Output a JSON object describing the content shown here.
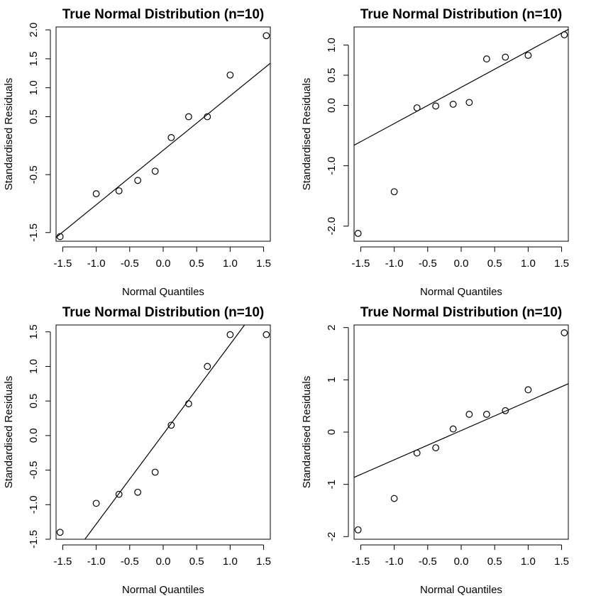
{
  "chart_data": [
    {
      "type": "scatter",
      "title": "True Normal Distribution (n=10)",
      "xlabel": "Normal Quantiles",
      "ylabel": "Standardised Residuals",
      "xlim": [
        -1.6,
        1.6
      ],
      "ylim": [
        -1.65,
        2.05
      ],
      "xticks": [
        -1.5,
        -1.0,
        -0.5,
        0.0,
        0.5,
        1.0,
        1.5
      ],
      "xtick_labels": [
        "-1.5",
        "-1.0",
        "-0.5",
        "0.0",
        "0.5",
        "1.0",
        "1.5"
      ],
      "yticks": [
        -1.5,
        -0.5,
        0.5,
        1.0,
        1.5,
        2.0
      ],
      "ytick_labels": [
        "-1.5",
        "-0.5",
        "0.5",
        "1.0",
        "1.5",
        "2.0"
      ],
      "x": [
        -1.54,
        -1.0,
        -0.66,
        -0.38,
        -0.12,
        0.12,
        0.38,
        0.66,
        1.0,
        1.54
      ],
      "y": [
        -1.57,
        -0.83,
        -0.78,
        -0.6,
        -0.44,
        0.14,
        0.5,
        0.5,
        1.22,
        1.9
      ],
      "reference_line": {
        "intercept": -0.08,
        "slope": 0.94
      }
    },
    {
      "type": "scatter",
      "title": "True Normal Distribution (n=10)",
      "xlabel": "Normal Quantiles",
      "ylabel": "Standardised Residuals",
      "xlim": [
        -1.6,
        1.6
      ],
      "ylim": [
        -2.25,
        1.3
      ],
      "xticks": [
        -1.5,
        -1.0,
        -0.5,
        0.0,
        0.5,
        1.0,
        1.5
      ],
      "xtick_labels": [
        "-1.5",
        "-1.0",
        "-0.5",
        "0.0",
        "0.5",
        "1.0",
        "1.5"
      ],
      "yticks": [
        -2.0,
        -1.0,
        0.0,
        0.5,
        1.0
      ],
      "ytick_labels": [
        "-2.0",
        "-1.0",
        "0.0",
        "0.5",
        "1.0"
      ],
      "x": [
        -1.54,
        -1.0,
        -0.66,
        -0.38,
        -0.12,
        0.12,
        0.38,
        0.66,
        1.0,
        1.54
      ],
      "y": [
        -2.12,
        -1.43,
        -0.04,
        -0.01,
        0.02,
        0.05,
        0.77,
        0.8,
        0.83,
        1.17
      ],
      "reference_line": {
        "intercept": 0.3,
        "slope": 0.6
      }
    },
    {
      "type": "scatter",
      "title": "True Normal Distribution (n=10)",
      "xlabel": "Normal Quantiles",
      "ylabel": "Standardised Residuals",
      "xlim": [
        -1.6,
        1.6
      ],
      "ylim": [
        -1.5,
        1.6
      ],
      "xticks": [
        -1.5,
        -1.0,
        -0.5,
        0.0,
        0.5,
        1.0,
        1.5
      ],
      "xtick_labels": [
        "-1.5",
        "-1.0",
        "-0.5",
        "0.0",
        "0.5",
        "1.0",
        "1.5"
      ],
      "yticks": [
        -1.5,
        -1.0,
        -0.5,
        0.0,
        0.5,
        1.0,
        1.5
      ],
      "ytick_labels": [
        "-1.5",
        "-1.0",
        "-0.5",
        "0.0",
        "0.5",
        "1.0",
        "1.5"
      ],
      "x": [
        -1.54,
        -1.0,
        -0.66,
        -0.38,
        -0.12,
        0.12,
        0.38,
        0.66,
        1.0,
        1.54
      ],
      "y": [
        -1.4,
        -0.98,
        -0.85,
        -0.82,
        -0.53,
        0.15,
        0.46,
        1.0,
        1.46,
        1.46
      ],
      "reference_line": {
        "intercept": 0.02,
        "slope": 1.3
      }
    },
    {
      "type": "scatter",
      "title": "True Normal Distribution (n=10)",
      "xlabel": "Normal Quantiles",
      "ylabel": "Standardised Residuals",
      "xlim": [
        -1.6,
        1.6
      ],
      "ylim": [
        -2.05,
        2.05
      ],
      "xticks": [
        -1.5,
        -1.0,
        -0.5,
        0.0,
        0.5,
        1.0,
        1.5
      ],
      "xtick_labels": [
        "-1.5",
        "-1.0",
        "-0.5",
        "0.0",
        "0.5",
        "1.0",
        "1.5"
      ],
      "yticks": [
        -2,
        -1,
        0,
        1,
        2
      ],
      "ytick_labels": [
        "-2",
        "-1",
        "0",
        "1",
        "2"
      ],
      "x": [
        -1.54,
        -1.0,
        -0.66,
        -0.38,
        -0.12,
        0.12,
        0.38,
        0.66,
        1.0,
        1.54
      ],
      "y": [
        -1.87,
        -1.27,
        -0.4,
        -0.3,
        0.06,
        0.34,
        0.34,
        0.41,
        0.81,
        1.9
      ],
      "reference_line": {
        "intercept": 0.03,
        "slope": 0.56
      }
    }
  ]
}
